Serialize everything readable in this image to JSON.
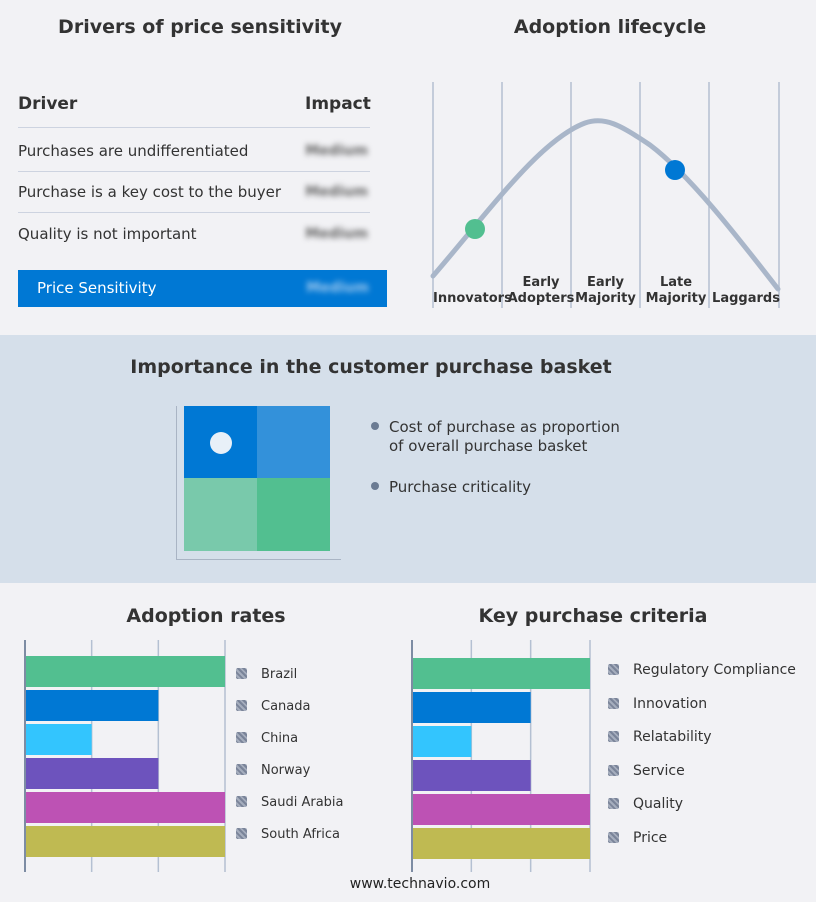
{
  "drivers": {
    "title": "Drivers of price sensitivity",
    "col_driver": "Driver",
    "col_impact": "Impact",
    "rows": [
      {
        "driver": "Purchases are undifferentiated",
        "impact": "Medium"
      },
      {
        "driver": "Purchase is a key cost to the buyer",
        "impact": "Medium"
      },
      {
        "driver": "Quality is not important",
        "impact": "Medium"
      }
    ],
    "summary": {
      "label": "Price Sensitivity",
      "impact": "Medium"
    },
    "accent": "#0078d4"
  },
  "lifecycle": {
    "title": "Adoption lifecycle",
    "stages": [
      "Innovators",
      "Early Adopters",
      "Early Majority",
      "Late Majority",
      "Laggards"
    ],
    "markers": [
      {
        "stage": "Innovators",
        "color": "#52bf90"
      },
      {
        "stage": "Late Majority",
        "color": "#0078d4"
      }
    ]
  },
  "basket": {
    "title": "Importance in the customer purchase basket",
    "bullets": [
      "Cost of purchase as proportion of overall purchase basket",
      "Purchase criticality"
    ],
    "quadrant_colors": [
      "#0078d4",
      "#3391da",
      "#79c9ab",
      "#52bf90"
    ],
    "marker_quadrant": "top-left"
  },
  "chart_data": [
    {
      "type": "bar",
      "title": "Adoption rates",
      "categories": [
        "Brazil",
        "Canada",
        "China",
        "Norway",
        "Saudi Arabia",
        "South Africa"
      ],
      "values": [
        3,
        2,
        1,
        2,
        3,
        3
      ],
      "colors": [
        "#52bf90",
        "#0078d4",
        "#33c5fe",
        "#6d53bd",
        "#bd52b4",
        "#bfba52"
      ],
      "xlim": [
        0,
        3
      ],
      "grid": true,
      "legend": "right"
    },
    {
      "type": "bar",
      "title": "Key purchase criteria",
      "categories": [
        "Regulatory Compliance",
        "Innovation",
        "Relatability",
        "Service",
        "Quality",
        "Price"
      ],
      "values": [
        3,
        2,
        1,
        2,
        3,
        3
      ],
      "colors": [
        "#52bf90",
        "#0078d4",
        "#33c5fe",
        "#6d53bd",
        "#bd52b4",
        "#bfba52"
      ],
      "xlim": [
        0,
        3
      ],
      "grid": true,
      "legend": "right"
    }
  ],
  "footer": "www.technavio.com"
}
